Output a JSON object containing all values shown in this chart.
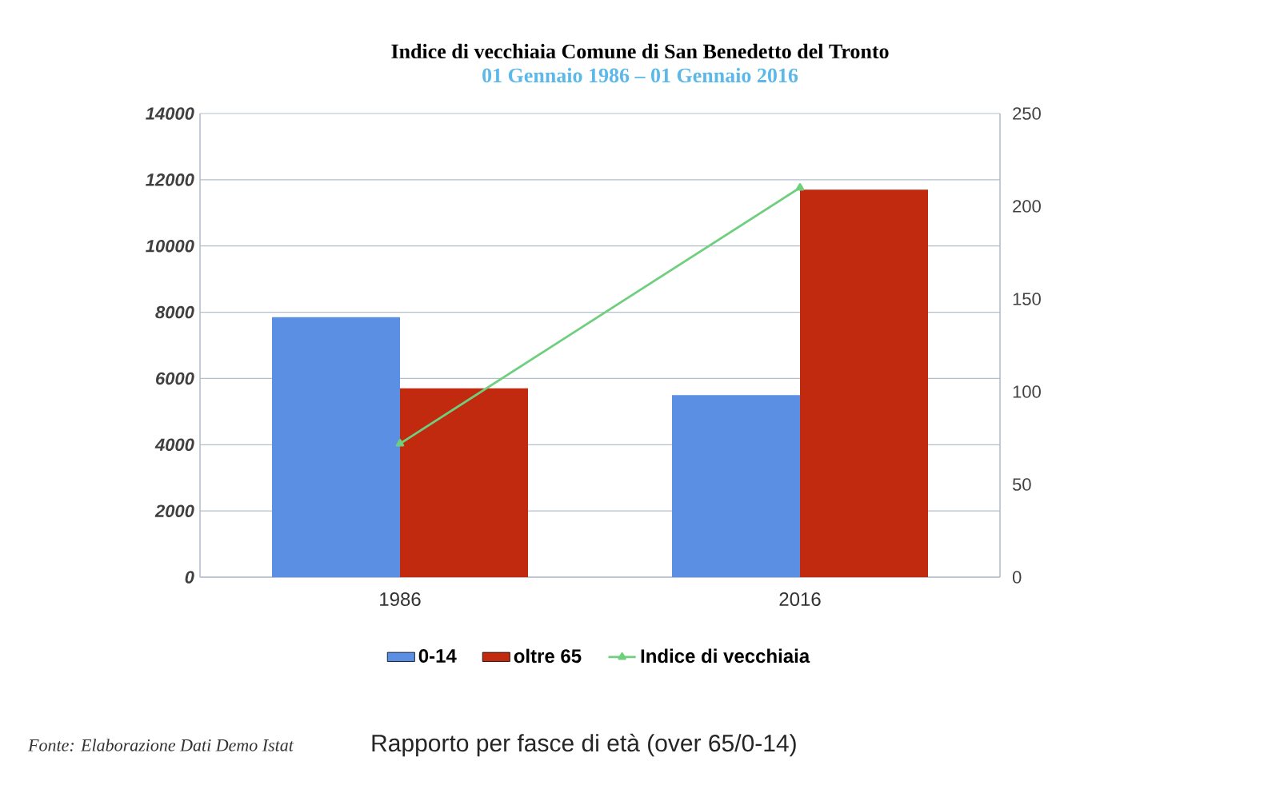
{
  "chart_data": {
    "type": "bar",
    "title": "Indice di vecchiaia Comune di San Benedetto del Tronto",
    "subtitle": "01 Gennaio 1986 – 01 Gennaio 2016",
    "categories": [
      "1986",
      "2016"
    ],
    "series": [
      {
        "name": "0-14",
        "color": "#5a8fe3",
        "values": [
          7850,
          5500
        ]
      },
      {
        "name": "oltre 65",
        "color": "#c12a0e",
        "values": [
          5700,
          11700
        ]
      },
      {
        "name": "Indice di vecchiaia",
        "type": "line",
        "axis": "y2",
        "color": "#6fcf7f",
        "marker": "triangle",
        "values": [
          72,
          210
        ]
      }
    ],
    "ylim": [
      0,
      14000
    ],
    "yticks": [
      0,
      2000,
      4000,
      6000,
      8000,
      10000,
      12000,
      14000
    ],
    "y2lim": [
      0,
      250
    ],
    "y2ticks": [
      0,
      50,
      100,
      150,
      200,
      250
    ],
    "grid": "y",
    "legend": "bottom",
    "annotations": [
      "Fonte: Elaborazione Dati Demo Istat",
      "Rapporto per fasce di età (over 65/0-14)"
    ]
  }
}
